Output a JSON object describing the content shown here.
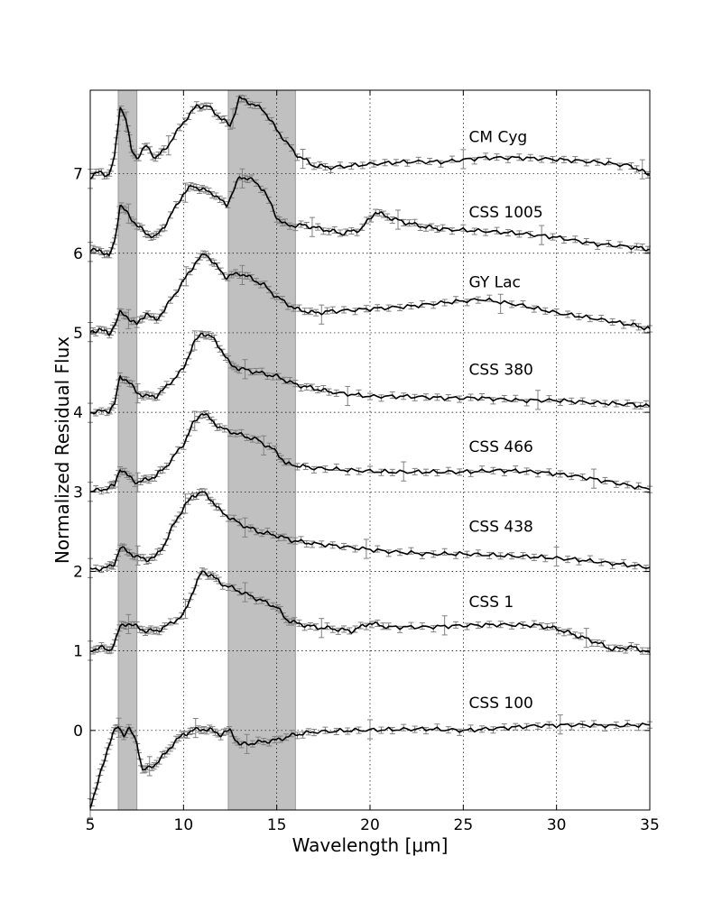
{
  "chart_data": {
    "type": "line",
    "xlabel": "Wavelength [μm]",
    "ylabel": "Normalized Residual Flux",
    "xlim": [
      5,
      35
    ],
    "ylim": [
      -1.0,
      8.05
    ],
    "xticks": [
      5,
      10,
      15,
      20,
      25,
      30,
      35
    ],
    "yticks": [
      0,
      1,
      2,
      3,
      4,
      5,
      6,
      7
    ],
    "grid": true,
    "shaded_bands": [
      [
        6.5,
        7.5
      ],
      [
        12.4,
        16.0
      ]
    ],
    "series": [
      {
        "name": "CM Cyg",
        "offset": 7,
        "label_x": 25.3,
        "label_y": 7.4,
        "points": [
          [
            5,
            6.96
          ],
          [
            5.5,
            7.02
          ],
          [
            6,
            6.98
          ],
          [
            6.3,
            7.2
          ],
          [
            6.6,
            7.85
          ],
          [
            6.9,
            7.7
          ],
          [
            7.2,
            7.3
          ],
          [
            7.5,
            7.2
          ],
          [
            8,
            7.35
          ],
          [
            8.5,
            7.2
          ],
          [
            9,
            7.3
          ],
          [
            10,
            7.65
          ],
          [
            10.7,
            7.85
          ],
          [
            11.3,
            7.85
          ],
          [
            12,
            7.7
          ],
          [
            12.5,
            7.6
          ],
          [
            13,
            7.95
          ],
          [
            13.5,
            7.9
          ],
          [
            14.3,
            7.8
          ],
          [
            15,
            7.55
          ],
          [
            16,
            7.25
          ],
          [
            17,
            7.1
          ],
          [
            18,
            7.08
          ],
          [
            20,
            7.12
          ],
          [
            22,
            7.15
          ],
          [
            24,
            7.15
          ],
          [
            26,
            7.2
          ],
          [
            28,
            7.2
          ],
          [
            30,
            7.18
          ],
          [
            32,
            7.15
          ],
          [
            34,
            7.1
          ],
          [
            35,
            6.98
          ]
        ]
      },
      {
        "name": "CSS 1005",
        "offset": 6,
        "label_x": 25.3,
        "label_y": 6.45,
        "points": [
          [
            5,
            6.02
          ],
          [
            5.5,
            6.05
          ],
          [
            6,
            5.95
          ],
          [
            6.3,
            6.15
          ],
          [
            6.6,
            6.6
          ],
          [
            7,
            6.5
          ],
          [
            7.5,
            6.35
          ],
          [
            8,
            6.25
          ],
          [
            8.5,
            6.2
          ],
          [
            9,
            6.35
          ],
          [
            10,
            6.75
          ],
          [
            10.5,
            6.85
          ],
          [
            11,
            6.8
          ],
          [
            11.6,
            6.75
          ],
          [
            12.3,
            6.6
          ],
          [
            13,
            6.95
          ],
          [
            13.5,
            6.95
          ],
          [
            14.3,
            6.8
          ],
          [
            15,
            6.45
          ],
          [
            15.5,
            6.35
          ],
          [
            16.5,
            6.35
          ],
          [
            17.5,
            6.3
          ],
          [
            18.5,
            6.25
          ],
          [
            19.5,
            6.3
          ],
          [
            20.3,
            6.52
          ],
          [
            21,
            6.45
          ],
          [
            22,
            6.38
          ],
          [
            23,
            6.33
          ],
          [
            24,
            6.3
          ],
          [
            26,
            6.28
          ],
          [
            28,
            6.25
          ],
          [
            30,
            6.2
          ],
          [
            32,
            6.12
          ],
          [
            34,
            6.08
          ],
          [
            35,
            6.05
          ]
        ]
      },
      {
        "name": "GY Lac",
        "offset": 5,
        "label_x": 25.3,
        "label_y": 5.57,
        "points": [
          [
            5,
            5.0
          ],
          [
            5.5,
            5.05
          ],
          [
            6,
            4.98
          ],
          [
            6.3,
            5.1
          ],
          [
            6.6,
            5.25
          ],
          [
            7,
            5.2
          ],
          [
            7.5,
            5.1
          ],
          [
            8,
            5.25
          ],
          [
            8.5,
            5.15
          ],
          [
            9,
            5.3
          ],
          [
            10,
            5.65
          ],
          [
            10.7,
            5.9
          ],
          [
            11.2,
            6.0
          ],
          [
            11.7,
            5.85
          ],
          [
            12.3,
            5.7
          ],
          [
            13,
            5.75
          ],
          [
            13.5,
            5.7
          ],
          [
            14.3,
            5.6
          ],
          [
            15,
            5.45
          ],
          [
            16,
            5.3
          ],
          [
            17,
            5.25
          ],
          [
            18,
            5.27
          ],
          [
            20,
            5.3
          ],
          [
            22,
            5.33
          ],
          [
            24,
            5.38
          ],
          [
            26,
            5.42
          ],
          [
            28,
            5.35
          ],
          [
            30,
            5.25
          ],
          [
            32,
            5.18
          ],
          [
            34,
            5.1
          ],
          [
            35,
            5.05
          ]
        ]
      },
      {
        "name": "CSS 380",
        "offset": 4,
        "label_x": 25.3,
        "label_y": 4.47,
        "points": [
          [
            5,
            4.0
          ],
          [
            6,
            4.02
          ],
          [
            6.3,
            4.1
          ],
          [
            6.6,
            4.45
          ],
          [
            7,
            4.4
          ],
          [
            7.5,
            4.25
          ],
          [
            8,
            4.2
          ],
          [
            8.5,
            4.2
          ],
          [
            9,
            4.3
          ],
          [
            10,
            4.55
          ],
          [
            10.5,
            4.85
          ],
          [
            11,
            5.0
          ],
          [
            11.5,
            4.95
          ],
          [
            12,
            4.8
          ],
          [
            12.5,
            4.6
          ],
          [
            13,
            4.55
          ],
          [
            14,
            4.5
          ],
          [
            15,
            4.45
          ],
          [
            16,
            4.35
          ],
          [
            17,
            4.3
          ],
          [
            18,
            4.25
          ],
          [
            20,
            4.2
          ],
          [
            22,
            4.2
          ],
          [
            24,
            4.18
          ],
          [
            26,
            4.18
          ],
          [
            28,
            4.15
          ],
          [
            30,
            4.15
          ],
          [
            32,
            4.12
          ],
          [
            34,
            4.1
          ],
          [
            35,
            4.07
          ]
        ]
      },
      {
        "name": "CSS 466",
        "offset": 3,
        "label_x": 25.3,
        "label_y": 3.5,
        "points": [
          [
            5,
            3.0
          ],
          [
            6,
            3.05
          ],
          [
            6.3,
            3.08
          ],
          [
            6.6,
            3.3
          ],
          [
            7,
            3.2
          ],
          [
            7.5,
            3.12
          ],
          [
            8,
            3.15
          ],
          [
            8.5,
            3.2
          ],
          [
            9,
            3.3
          ],
          [
            10,
            3.6
          ],
          [
            10.5,
            3.85
          ],
          [
            11,
            4.0
          ],
          [
            11.5,
            3.9
          ],
          [
            12,
            3.8
          ],
          [
            13,
            3.72
          ],
          [
            14,
            3.65
          ],
          [
            15,
            3.5
          ],
          [
            15.5,
            3.35
          ],
          [
            17,
            3.3
          ],
          [
            19,
            3.27
          ],
          [
            21,
            3.25
          ],
          [
            23,
            3.25
          ],
          [
            25,
            3.25
          ],
          [
            27,
            3.27
          ],
          [
            29,
            3.25
          ],
          [
            31,
            3.2
          ],
          [
            33,
            3.12
          ],
          [
            35,
            3.03
          ]
        ]
      },
      {
        "name": "CSS 438",
        "offset": 2,
        "label_x": 25.3,
        "label_y": 2.5,
        "points": [
          [
            5,
            2.02
          ],
          [
            6,
            2.05
          ],
          [
            6.3,
            2.1
          ],
          [
            6.6,
            2.3
          ],
          [
            7,
            2.25
          ],
          [
            7.5,
            2.18
          ],
          [
            8,
            2.15
          ],
          [
            8.5,
            2.18
          ],
          [
            9,
            2.35
          ],
          [
            9.5,
            2.6
          ],
          [
            10,
            2.8
          ],
          [
            10.5,
            2.95
          ],
          [
            11,
            3.0
          ],
          [
            11.5,
            2.9
          ],
          [
            12,
            2.75
          ],
          [
            13,
            2.6
          ],
          [
            14,
            2.5
          ],
          [
            15,
            2.45
          ],
          [
            16,
            2.38
          ],
          [
            17,
            2.35
          ],
          [
            19,
            2.3
          ],
          [
            21,
            2.25
          ],
          [
            23,
            2.22
          ],
          [
            25,
            2.22
          ],
          [
            27,
            2.2
          ],
          [
            29,
            2.18
          ],
          [
            31,
            2.15
          ],
          [
            33,
            2.1
          ],
          [
            35,
            2.05
          ]
        ]
      },
      {
        "name": "CSS 1",
        "offset": 1,
        "label_x": 25.3,
        "label_y": 1.55,
        "points": [
          [
            5,
            1.0
          ],
          [
            5.5,
            1.05
          ],
          [
            6,
            1.0
          ],
          [
            6.3,
            1.1
          ],
          [
            6.6,
            1.3
          ],
          [
            7,
            1.35
          ],
          [
            7.5,
            1.3
          ],
          [
            8,
            1.25
          ],
          [
            8.5,
            1.25
          ],
          [
            9,
            1.3
          ],
          [
            10,
            1.45
          ],
          [
            10.5,
            1.75
          ],
          [
            11,
            2.0
          ],
          [
            11.5,
            1.95
          ],
          [
            12,
            1.85
          ],
          [
            13,
            1.75
          ],
          [
            14,
            1.65
          ],
          [
            15,
            1.55
          ],
          [
            15.5,
            1.4
          ],
          [
            16,
            1.35
          ],
          [
            17,
            1.3
          ],
          [
            18,
            1.28
          ],
          [
            19,
            1.25
          ],
          [
            20,
            1.35
          ],
          [
            21,
            1.3
          ],
          [
            23,
            1.3
          ],
          [
            25,
            1.32
          ],
          [
            27,
            1.33
          ],
          [
            29,
            1.32
          ],
          [
            30,
            1.28
          ],
          [
            31,
            1.2
          ],
          [
            32,
            1.12
          ],
          [
            33,
            1.02
          ],
          [
            34,
            1.05
          ],
          [
            35,
            0.98
          ]
        ]
      },
      {
        "name": "CSS 100",
        "offset": 0,
        "label_x": 25.3,
        "label_y": 0.28,
        "points": [
          [
            5,
            -0.95
          ],
          [
            5.3,
            -0.75
          ],
          [
            5.6,
            -0.5
          ],
          [
            5.9,
            -0.25
          ],
          [
            6.2,
            -0.05
          ],
          [
            6.5,
            0.05
          ],
          [
            6.8,
            -0.05
          ],
          [
            7.1,
            0.02
          ],
          [
            7.5,
            -0.15
          ],
          [
            7.8,
            -0.5
          ],
          [
            8.1,
            -0.48
          ],
          [
            8.5,
            -0.42
          ],
          [
            9,
            -0.3
          ],
          [
            9.5,
            -0.15
          ],
          [
            10,
            -0.05
          ],
          [
            10.5,
            0.0
          ],
          [
            11,
            0.02
          ],
          [
            11.5,
            0.0
          ],
          [
            12,
            -0.05
          ],
          [
            12.5,
            0.0
          ],
          [
            13,
            -0.18
          ],
          [
            14,
            -0.15
          ],
          [
            15,
            -0.12
          ],
          [
            16,
            -0.05
          ],
          [
            17,
            -0.02
          ],
          [
            19,
            0.0
          ],
          [
            21,
            0.01
          ],
          [
            23,
            0.02
          ],
          [
            25,
            0.0
          ],
          [
            27,
            0.03
          ],
          [
            29,
            0.06
          ],
          [
            31,
            0.07
          ],
          [
            33,
            0.06
          ],
          [
            35,
            0.07
          ]
        ]
      }
    ]
  },
  "colors": {
    "line": "#000000",
    "errorbar": "#808080",
    "shade": "#c0c0c0",
    "grid": "#000000"
  }
}
